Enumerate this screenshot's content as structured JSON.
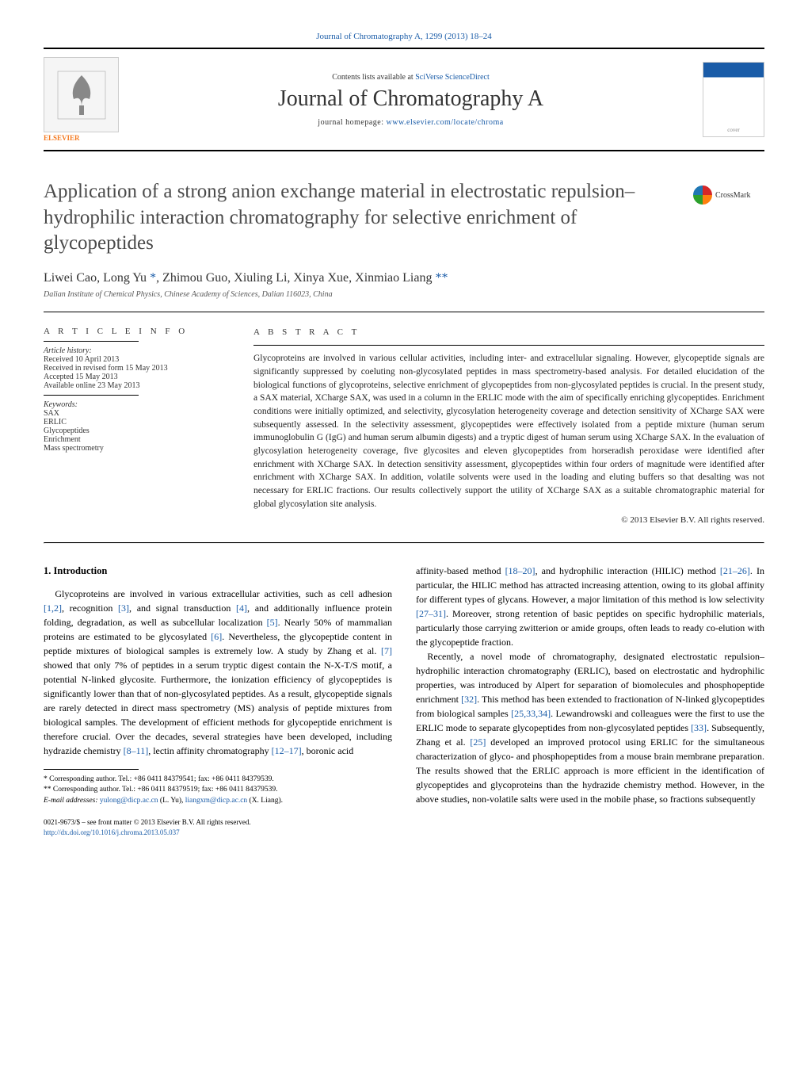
{
  "top_link": "Journal of Chromatography A, 1299 (2013) 18–24",
  "header": {
    "contents_prefix": "Contents lists available at ",
    "contents_link": "SciVerse ScienceDirect",
    "journal_name": "Journal of Chromatography A",
    "homepage_prefix": "journal homepage: ",
    "homepage_link": "www.elsevier.com/locate/chroma",
    "elsevier_label": "ELSEVIER"
  },
  "crossmark_text": "CrossMark",
  "title": "Application of a strong anion exchange material in electrostatic repulsion–hydrophilic interaction chromatography for selective enrichment of glycopeptides",
  "authors_html": "Liwei Cao, Long Yu <span class='star'>*</span>, Zhimou Guo, Xiuling Li, Xinya Xue, Xinmiao Liang <span class='star'>**</span>",
  "affiliation": "Dalian Institute of Chemical Physics, Chinese Academy of Sciences, Dalian 116023, China",
  "article_info": {
    "heading": "A R T I C L E   I N F O",
    "history_label": "Article history:",
    "history": [
      "Received 10 April 2013",
      "Received in revised form 15 May 2013",
      "Accepted 15 May 2013",
      "Available online 23 May 2013"
    ],
    "keywords_label": "Keywords:",
    "keywords": [
      "SAX",
      "ERLIC",
      "Glycopeptides",
      "Enrichment",
      "Mass spectrometry"
    ]
  },
  "abstract": {
    "heading": "A B S T R A C T",
    "text": "Glycoproteins are involved in various cellular activities, including inter- and extracellular signaling. However, glycopeptide signals are significantly suppressed by coeluting non-glycosylated peptides in mass spectrometry-based analysis. For detailed elucidation of the biological functions of glycoproteins, selective enrichment of glycopeptides from non-glycosylated peptides is crucial. In the present study, a SAX material, XCharge SAX, was used in a column in the ERLIC mode with the aim of specifically enriching glycopeptides. Enrichment conditions were initially optimized, and selectivity, glycosylation heterogeneity coverage and detection sensitivity of XCharge SAX were subsequently assessed. In the selectivity assessment, glycopeptides were effectively isolated from a peptide mixture (human serum immunoglobulin G (IgG) and human serum albumin digests) and a tryptic digest of human serum using XCharge SAX. In the evaluation of glycosylation heterogeneity coverage, five glycosites and eleven glycopeptides from horseradish peroxidase were identified after enrichment with XCharge SAX. In detection sensitivity assessment, glycopeptides within four orders of magnitude were identified after enrichment with XCharge SAX. In addition, volatile solvents were used in the loading and eluting buffers so that desalting was not necessary for ERLIC fractions. Our results collectively support the utility of XCharge SAX as a suitable chromatographic material for global glycosylation site analysis.",
    "copyright": "© 2013 Elsevier B.V. All rights reserved."
  },
  "body": {
    "section_number": "1.",
    "section_title": "Introduction",
    "col1_p1_a": "Glycoproteins are involved in various extracellular activities, such as cell adhesion ",
    "col1_p1_r1": "[1,2]",
    "col1_p1_b": ", recognition ",
    "col1_p1_r2": "[3]",
    "col1_p1_c": ", and signal transduction ",
    "col1_p1_r3": "[4]",
    "col1_p1_d": ", and additionally influence protein folding, degradation, as well as subcellular localization ",
    "col1_p1_r4": "[5]",
    "col1_p1_e": ". Nearly 50% of mammalian proteins are estimated to be glycosylated ",
    "col1_p1_r5": "[6]",
    "col1_p1_f": ". Nevertheless, the glycopeptide content in peptide mixtures of biological samples is extremely low. A study by Zhang et al. ",
    "col1_p1_r6": "[7]",
    "col1_p1_g": " showed that only 7% of peptides in a serum tryptic digest contain the N-X-T/S motif, a potential N-linked glycosite. Furthermore, the ionization efficiency of glycopeptides is significantly lower than that of non-glycosylated peptides. As a result, glycopeptide signals are rarely detected in direct mass spectrometry (MS) analysis of peptide mixtures from biological samples. The development of efficient methods for glycopeptide enrichment is therefore crucial. Over the decades, several strategies have been developed, including hydrazide chemistry ",
    "col1_p1_r7": "[8–11]",
    "col1_p1_h": ", lectin affinity chromatography ",
    "col1_p1_r8": "[12–17]",
    "col1_p1_i": ", boronic acid",
    "col2_p1_a": "affinity-based method ",
    "col2_p1_r1": "[18–20]",
    "col2_p1_b": ", and hydrophilic interaction (HILIC) method ",
    "col2_p1_r2": "[21–26]",
    "col2_p1_c": ". In particular, the HILIC method has attracted increasing attention, owing to its global affinity for different types of glycans. However, a major limitation of this method is low selectivity ",
    "col2_p1_r3": "[27–31]",
    "col2_p1_d": ". Moreover, strong retention of basic peptides on specific hydrophilic materials, particularly those carrying zwitterion or amide groups, often leads to ready co-elution with the glycopeptide fraction.",
    "col2_p2_a": "Recently, a novel mode of chromatography, designated electrostatic repulsion–hydrophilic interaction chromatography (ERLIC), based on electrostatic and hydrophilic properties, was introduced by Alpert for separation of biomolecules and phosphopeptide enrichment ",
    "col2_p2_r1": "[32]",
    "col2_p2_b": ". This method has been extended to fractionation of N-linked glycopeptides from biological samples ",
    "col2_p2_r2": "[25,33,34]",
    "col2_p2_c": ". Lewandrowski and colleagues were the first to use the ERLIC mode to separate glycopeptides from non-glycosylated peptides ",
    "col2_p2_r3": "[33]",
    "col2_p2_d": ". Subsequently, Zhang et al. ",
    "col2_p2_r4": "[25]",
    "col2_p2_e": " developed an improved protocol using ERLIC for the simultaneous characterization of glyco- and phosphopeptides from a mouse brain membrane preparation. The results showed that the ERLIC approach is more efficient in the identification of glycopeptides and glycoproteins than the hydrazide chemistry method. However, in the above studies, non-volatile salts were used in the mobile phase, so fractions subsequently"
  },
  "footnotes": {
    "f1": "* Corresponding author. Tel.: +86 0411 84379541; fax: +86 0411 84379539.",
    "f2": "** Corresponding author. Tel.: +86 0411 84379519; fax: +86 0411 84379539.",
    "email_label": "E-mail addresses: ",
    "email1": "yulong@dicp.ac.cn",
    "email1_name": " (L. Yu), ",
    "email2": "liangxm@dicp.ac.cn",
    "email2_name": " (X. Liang)."
  },
  "bottom": {
    "line1": "0021-9673/$ – see front matter © 2013 Elsevier B.V. All rights reserved.",
    "doi": "http://dx.doi.org/10.1016/j.chroma.2013.05.037"
  }
}
